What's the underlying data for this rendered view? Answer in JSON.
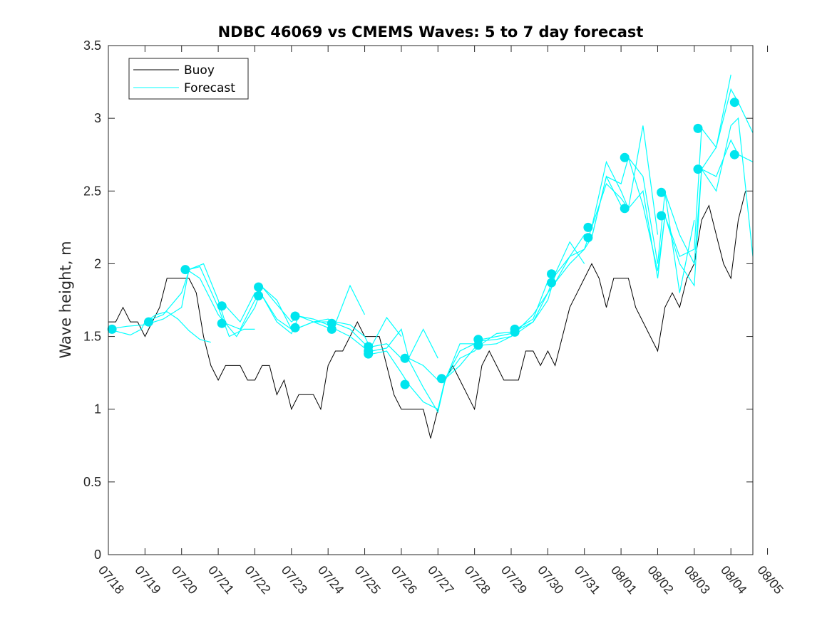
{
  "chart_data": {
    "type": "line",
    "title": "NDBC 46069 vs CMEMS Waves: 5 to 7 day forecast",
    "xlabel": "",
    "ylabel": "Wave height, m",
    "xlim": [
      0,
      17.6
    ],
    "ylim": [
      0,
      3.5
    ],
    "yticks": [
      "0",
      "0.5",
      "1",
      "1.5",
      "2",
      "2.5",
      "3",
      "3.5"
    ],
    "xticks": [
      "07/18",
      "07/19",
      "07/20",
      "07/21",
      "07/22",
      "07/23",
      "07/24",
      "07/25",
      "07/26",
      "07/27",
      "07/28",
      "07/29",
      "07/30",
      "07/31",
      "08/01",
      "08/02",
      "08/03",
      "08/04",
      "08/05"
    ],
    "grid": false,
    "legend": {
      "position": "top-left",
      "entries": [
        "Buoy",
        "Forecast"
      ]
    },
    "colors": {
      "buoy": "#000000",
      "forecast": "#00ffff",
      "markers": "#00e5ee",
      "axes": "#262626"
    },
    "series": [
      {
        "name": "Buoy",
        "x": [
          0.0,
          0.2,
          0.4,
          0.6,
          0.8,
          1.0,
          1.2,
          1.4,
          1.6,
          1.8,
          2.0,
          2.2,
          2.4,
          2.6,
          2.8,
          3.0,
          3.2,
          3.4,
          3.6,
          3.8,
          4.0,
          4.2,
          4.4,
          4.6,
          4.8,
          5.0,
          5.2,
          5.4,
          5.6,
          5.8,
          6.0,
          6.2,
          6.4,
          6.6,
          6.8,
          7.0,
          7.2,
          7.4,
          7.6,
          7.8,
          8.0,
          8.2,
          8.4,
          8.6,
          8.8,
          9.0,
          9.2,
          9.4,
          9.6,
          9.8,
          10.0,
          10.2,
          10.4,
          10.6,
          10.8,
          11.0,
          11.2,
          11.4,
          11.6,
          11.8,
          12.0,
          12.2,
          12.4,
          12.6,
          12.8,
          13.0,
          13.2,
          13.4,
          13.6,
          13.8,
          14.0,
          14.2,
          14.4,
          14.6,
          14.8,
          15.0,
          15.2,
          15.4,
          15.6,
          15.8,
          16.0,
          16.2,
          16.4,
          16.6,
          16.8,
          17.0,
          17.2,
          17.4
        ],
        "values": [
          1.6,
          1.6,
          1.7,
          1.6,
          1.6,
          1.5,
          1.6,
          1.7,
          1.9,
          1.9,
          1.9,
          1.9,
          1.8,
          1.5,
          1.3,
          1.2,
          1.3,
          1.3,
          1.3,
          1.2,
          1.2,
          1.3,
          1.3,
          1.1,
          1.2,
          1.0,
          1.1,
          1.1,
          1.1,
          1.0,
          1.3,
          1.4,
          1.4,
          1.5,
          1.6,
          1.5,
          1.5,
          1.5,
          1.3,
          1.1,
          1.0,
          1.0,
          1.0,
          1.0,
          0.8,
          1.0,
          1.2,
          1.3,
          1.2,
          1.1,
          1.0,
          1.3,
          1.4,
          1.3,
          1.2,
          1.2,
          1.2,
          1.4,
          1.4,
          1.3,
          1.4,
          1.3,
          1.5,
          1.7,
          1.8,
          1.9,
          2.0,
          1.9,
          1.7,
          1.9,
          1.9,
          1.9,
          1.7,
          1.6,
          1.5,
          1.4,
          1.7,
          1.8,
          1.7,
          1.9,
          2.0,
          2.3,
          2.4,
          2.2,
          2.0,
          1.9,
          2.3,
          2.5
        ]
      },
      {
        "name": "Forecast",
        "runs": [
          {
            "x": [
              0.0,
              0.3,
              0.6,
              0.9,
              1.0,
              1.3,
              1.6,
              1.9,
              2.2,
              2.5,
              2.8
            ],
            "values": [
              1.55,
              1.53,
              1.51,
              1.55,
              1.6,
              1.65,
              1.67,
              1.62,
              1.54,
              1.48,
              1.46
            ]
          },
          {
            "x": [
              0.0,
              0.5,
              1.0,
              1.5,
              2.0,
              2.2,
              2.5,
              3.0,
              3.3,
              3.7,
              4.0
            ],
            "values": [
              1.55,
              1.57,
              1.58,
              1.62,
              1.7,
              1.96,
              1.98,
              1.7,
              1.5,
              1.55,
              1.55
            ]
          },
          {
            "x": [
              1.0,
              1.5,
              2.0,
              2.2,
              2.5,
              3.0,
              3.5,
              4.0,
              4.2,
              4.6,
              5.0
            ],
            "values": [
              1.6,
              1.65,
              1.8,
              1.95,
              1.9,
              1.65,
              1.5,
              1.7,
              1.84,
              1.75,
              1.55
            ]
          },
          {
            "x": [
              2.2,
              2.6,
              3.0,
              3.2,
              3.6,
              4.0,
              4.2,
              4.6,
              5.0,
              5.2,
              5.6,
              6.0
            ],
            "values": [
              1.96,
              2.0,
              1.75,
              1.59,
              1.55,
              1.75,
              1.78,
              1.6,
              1.52,
              1.64,
              1.6,
              1.56
            ]
          },
          {
            "x": [
              3.2,
              3.6,
              4.0,
              4.2,
              4.6,
              5.0,
              5.2,
              5.6,
              6.0,
              6.2,
              6.6,
              7.0
            ],
            "values": [
              1.71,
              1.6,
              1.8,
              1.78,
              1.62,
              1.55,
              1.56,
              1.6,
              1.6,
              1.59,
              1.85,
              1.65
            ]
          },
          {
            "x": [
              4.2,
              4.6,
              5.0,
              5.2,
              5.6,
              6.0,
              6.2,
              6.6,
              7.0,
              7.2,
              7.6,
              8.0
            ],
            "values": [
              1.84,
              1.72,
              1.6,
              1.64,
              1.62,
              1.58,
              1.55,
              1.5,
              1.42,
              1.44,
              1.63,
              1.5
            ]
          },
          {
            "x": [
              5.2,
              5.6,
              6.0,
              6.2,
              6.6,
              7.0,
              7.2,
              7.6,
              8.0,
              8.2,
              8.6,
              9.0
            ],
            "values": [
              1.56,
              1.6,
              1.62,
              1.6,
              1.58,
              1.5,
              1.4,
              1.42,
              1.55,
              1.35,
              1.55,
              1.35
            ]
          },
          {
            "x": [
              6.2,
              6.6,
              7.0,
              7.2,
              7.6,
              8.0,
              8.2,
              8.6,
              9.0,
              9.2,
              9.6,
              10.0
            ],
            "values": [
              1.59,
              1.55,
              1.45,
              1.38,
              1.4,
              1.25,
              1.17,
              1.05,
              1.0,
              1.21,
              1.4,
              1.45
            ]
          },
          {
            "x": [
              7.2,
              7.6,
              8.0,
              8.2,
              8.6,
              9.0,
              9.2,
              9.6,
              10.0,
              10.2,
              10.6,
              11.0
            ],
            "values": [
              1.43,
              1.45,
              1.35,
              1.34,
              1.15,
              0.98,
              1.2,
              1.45,
              1.45,
              1.48,
              1.5,
              1.52
            ]
          },
          {
            "x": [
              8.2,
              8.6,
              9.0,
              9.2,
              9.6,
              10.0,
              10.2,
              10.6,
              11.0,
              11.2,
              11.6,
              12.0
            ],
            "values": [
              1.35,
              1.3,
              1.2,
              1.21,
              1.35,
              1.4,
              1.45,
              1.52,
              1.53,
              1.56,
              1.62,
              1.88
            ]
          },
          {
            "x": [
              9.2,
              9.6,
              10.0,
              10.2,
              10.6,
              11.0,
              11.2,
              11.6,
              12.0,
              12.2,
              12.6,
              13.0
            ],
            "values": [
              1.21,
              1.3,
              1.42,
              1.47,
              1.48,
              1.5,
              1.55,
              1.65,
              1.8,
              1.93,
              2.15,
              2.0
            ]
          },
          {
            "x": [
              10.2,
              10.6,
              11.0,
              11.2,
              11.6,
              12.0,
              12.2,
              12.6,
              13.0,
              13.2,
              13.6,
              14.0
            ],
            "values": [
              1.44,
              1.45,
              1.5,
              1.53,
              1.6,
              1.8,
              1.87,
              2.05,
              2.2,
              2.18,
              2.6,
              2.4
            ]
          },
          {
            "x": [
              11.2,
              11.6,
              12.0,
              12.2,
              12.6,
              13.0,
              13.2,
              13.6,
              14.0,
              14.2,
              14.6,
              15.0
            ],
            "values": [
              1.55,
              1.6,
              1.75,
              1.92,
              2.05,
              2.1,
              2.25,
              2.7,
              2.5,
              2.38,
              2.95,
              2.2
            ]
          },
          {
            "x": [
              12.2,
              12.6,
              13.0,
              13.2,
              13.6,
              14.0,
              14.2,
              14.6,
              15.0,
              15.2,
              15.6,
              16.0
            ],
            "values": [
              1.87,
              2.0,
              2.1,
              2.18,
              2.6,
              2.55,
              2.73,
              2.6,
              2.0,
              2.49,
              1.8,
              2.3
            ]
          },
          {
            "x": [
              13.2,
              13.6,
              14.0,
              14.2,
              14.6,
              15.0,
              15.2,
              15.6,
              16.0,
              16.2,
              16.6,
              17.0
            ],
            "values": [
              2.25,
              2.55,
              2.45,
              2.38,
              2.5,
              1.9,
              2.33,
              2.05,
              2.1,
              2.93,
              2.8,
              3.3
            ]
          },
          {
            "x": [
              14.2,
              14.6,
              15.0,
              15.2,
              15.6,
              16.0,
              16.2,
              16.6,
              17.0,
              17.2,
              17.6
            ],
            "values": [
              2.73,
              2.4,
              1.95,
              2.33,
              2.0,
              1.85,
              2.65,
              2.8,
              3.2,
              3.11,
              2.9
            ]
          },
          {
            "x": [
              15.2,
              15.6,
              16.0,
              16.2,
              16.6,
              17.0,
              17.2,
              17.6
            ],
            "values": [
              2.49,
              2.2,
              2.0,
              2.65,
              2.6,
              2.85,
              2.75,
              2.7
            ]
          },
          {
            "x": [
              16.2,
              16.6,
              17.0,
              17.2,
              17.6
            ],
            "values": [
              2.65,
              2.5,
              2.95,
              3.0,
              2.05
            ]
          }
        ],
        "markers": {
          "x": [
            0.1,
            1.1,
            2.1,
            3.1,
            3.1,
            4.1,
            4.1,
            5.1,
            5.1,
            6.1,
            6.1,
            7.1,
            7.1,
            7.1,
            8.1,
            8.1,
            9.1,
            10.1,
            10.1,
            11.1,
            11.1,
            12.1,
            12.1,
            13.1,
            13.1,
            14.1,
            14.1,
            15.1,
            15.1,
            16.1,
            16.1,
            17.1,
            17.1
          ],
          "values": [
            1.55,
            1.6,
            1.96,
            1.71,
            1.59,
            1.84,
            1.78,
            1.64,
            1.56,
            1.59,
            1.55,
            1.43,
            1.4,
            1.38,
            1.35,
            1.17,
            1.21,
            1.48,
            1.44,
            1.55,
            1.53,
            1.93,
            1.87,
            2.25,
            2.18,
            2.73,
            2.38,
            2.49,
            2.33,
            2.93,
            2.65,
            3.11,
            2.75
          ]
        }
      }
    ]
  }
}
